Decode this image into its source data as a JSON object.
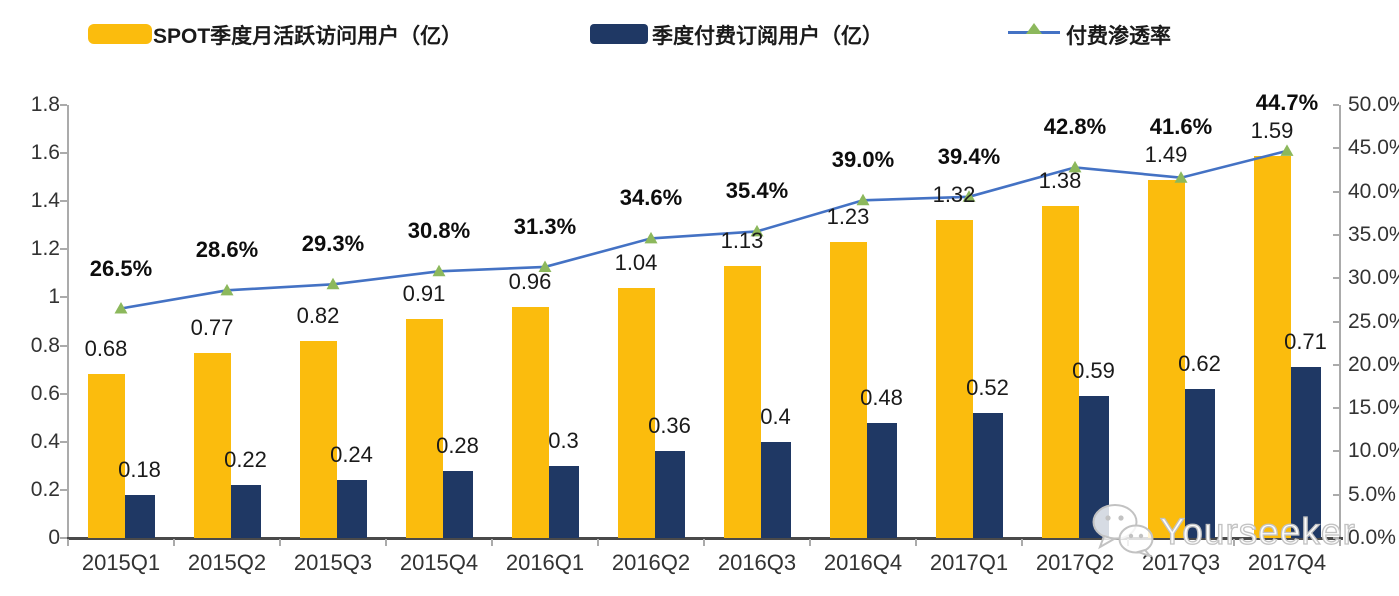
{
  "legend": {
    "items": [
      {
        "label": "SPOT季度月活跃访问用户（亿）",
        "swatch": "yellow-bar-swatch"
      },
      {
        "label": "季度付费订阅用户（亿）",
        "swatch": "navy-bar-swatch"
      },
      {
        "label": "付费渗透率",
        "swatch": "line-marker-swatch"
      }
    ]
  },
  "colors": {
    "mau_bar": "#FBBC0D",
    "paid_bar": "#1F3864",
    "line": "#4472C4",
    "marker": "#8CB85C",
    "axis": "#ABABAB",
    "bottom_axis": "#4a4a4a"
  },
  "watermark": {
    "icon": "wechat-icon",
    "text": "Yourseeker"
  },
  "chart_data": {
    "type": "bar",
    "subtype": "grouped-bars-with-line",
    "title": "",
    "categories": [
      "2015Q1",
      "2015Q2",
      "2015Q3",
      "2015Q4",
      "2016Q1",
      "2016Q2",
      "2016Q3",
      "2016Q4",
      "2017Q1",
      "2017Q2",
      "2017Q3",
      "2017Q4"
    ],
    "series": [
      {
        "name": "SPOT季度月活跃访问用户（亿）",
        "type": "bar",
        "axis": "left",
        "color": "#FBBC0D",
        "values": [
          0.68,
          0.77,
          0.82,
          0.91,
          0.96,
          1.04,
          1.13,
          1.23,
          1.32,
          1.38,
          1.49,
          1.59
        ],
        "labels": [
          "0.68",
          "0.77",
          "0.82",
          "0.91",
          "0.96",
          "1.04",
          "1.13",
          "1.23",
          "1.32",
          "1.38",
          "1.49",
          "1.59"
        ]
      },
      {
        "name": "季度付费订阅用户（亿）",
        "type": "bar",
        "axis": "left",
        "color": "#1F3864",
        "values": [
          0.18,
          0.22,
          0.24,
          0.28,
          0.3,
          0.36,
          0.4,
          0.48,
          0.52,
          0.59,
          0.62,
          0.71
        ],
        "labels": [
          "0.18",
          "0.22",
          "0.24",
          "0.28",
          "0.3",
          "0.36",
          "0.4",
          "0.48",
          "0.52",
          "0.59",
          "0.62",
          "0.71"
        ]
      },
      {
        "name": "付费渗透率",
        "type": "line",
        "axis": "right",
        "color": "#4472C4",
        "marker": "triangle",
        "marker_color": "#8CB85C",
        "values": [
          26.5,
          28.6,
          29.3,
          30.8,
          31.3,
          34.6,
          35.4,
          39.0,
          39.4,
          42.8,
          41.6,
          44.7
        ],
        "labels": [
          "26.5%",
          "28.6%",
          "29.3%",
          "30.8%",
          "31.3%",
          "34.6%",
          "35.4%",
          "39.0%",
          "39.4%",
          "42.8%",
          "41.6%",
          "44.7%"
        ]
      }
    ],
    "left_axis": {
      "min": 0,
      "max": 1.8,
      "step": 0.2,
      "ticks": [
        "0",
        "0.2",
        "0.4",
        "0.6",
        "0.8",
        "1",
        "1.2",
        "1.4",
        "1.6",
        "1.8"
      ]
    },
    "right_axis": {
      "min": 0,
      "max": 50,
      "step": 5,
      "ticks": [
        "0.0%",
        "5.0%",
        "10.0%",
        "15.0%",
        "20.0%",
        "25.0%",
        "30.0%",
        "35.0%",
        "40.0%",
        "45.0%",
        "50.0%"
      ]
    },
    "grid": false,
    "legend_position": "top"
  }
}
